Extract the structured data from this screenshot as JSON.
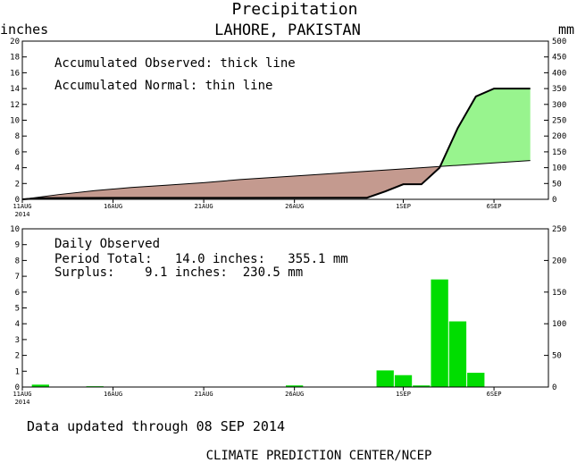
{
  "header": {
    "title": "Precipitation",
    "subtitle": "LAHORE, PAKISTAN",
    "left_unit": "inches",
    "right_unit": "mm"
  },
  "top_panel": {
    "legend_observed": "Accumulated Observed: thick line",
    "legend_normal": "Accumulated Normal: thin line"
  },
  "bottom_panel": {
    "label": "Daily Observed",
    "period_total": "Period Total:   14.0 inches:   355.1 mm",
    "surplus": "Surplus:    9.1 inches:  230.5 mm"
  },
  "footer": {
    "updated": "Data updated through 08 SEP 2014",
    "credit": "CLIMATE PREDICTION CENTER/NCEP"
  },
  "colors": {
    "deficit_fill": "#c49a8f",
    "surplus_fill": "#98f48e",
    "bar": "#00dd00",
    "axis": "#000000"
  },
  "chart_data": [
    {
      "type": "area",
      "title": "Precipitation",
      "subtitle": "LAHORE, PAKISTAN",
      "ylabel": "inches",
      "y2label": "mm",
      "ylim": [
        0,
        20
      ],
      "y2lim": [
        0,
        500
      ],
      "yticks": [
        0,
        2,
        4,
        6,
        8,
        10,
        12,
        14,
        16,
        18,
        20
      ],
      "y2ticks": [
        0,
        50,
        100,
        150,
        200,
        250,
        300,
        350,
        400,
        450,
        500
      ],
      "xlim": [
        0,
        29
      ],
      "xtick_days": [
        0,
        5,
        10,
        15,
        21,
        26
      ],
      "xtick_labels": [
        "11AUG",
        "16AUG",
        "21AUG",
        "26AUG",
        "1SEP",
        "6SEP"
      ],
      "xtick_year": "2014",
      "series": [
        {
          "name": "Accumulated Observed",
          "days": [
            0,
            1,
            5,
            19,
            20,
            21,
            22,
            23,
            24,
            25,
            26,
            27,
            28
          ],
          "values": [
            0,
            0.15,
            0.18,
            0.2,
            1.0,
            1.9,
            1.9,
            4.0,
            9.0,
            13.0,
            14.0,
            14.0,
            14.0
          ]
        },
        {
          "name": "Accumulated Normal",
          "days": [
            0,
            2,
            4,
            6,
            8,
            10,
            12,
            14,
            16,
            18,
            20,
            22,
            24,
            26,
            28
          ],
          "values": [
            0,
            0.6,
            1.1,
            1.5,
            1.8,
            2.1,
            2.5,
            2.8,
            3.1,
            3.4,
            3.7,
            4.0,
            4.3,
            4.6,
            4.9
          ]
        }
      ]
    },
    {
      "type": "bar",
      "title": "Daily Observed",
      "ylim": [
        0,
        10
      ],
      "y2lim": [
        0,
        250
      ],
      "yticks": [
        0,
        1,
        2,
        3,
        4,
        5,
        6,
        7,
        8,
        9,
        10
      ],
      "y2ticks": [
        0,
        50,
        100,
        150,
        200,
        250
      ],
      "xlim": [
        0,
        29
      ],
      "xtick_days": [
        0,
        5,
        10,
        15,
        21,
        26
      ],
      "xtick_labels": [
        "11AUG",
        "16AUG",
        "21AUG",
        "26AUG",
        "1SEP",
        "6SEP"
      ],
      "xtick_year": "2014",
      "days": [
        1,
        4,
        15,
        20,
        21,
        22,
        23,
        24,
        25
      ],
      "values": [
        0.15,
        0.05,
        0.1,
        1.05,
        0.75,
        0.1,
        6.8,
        4.15,
        0.9
      ]
    }
  ]
}
